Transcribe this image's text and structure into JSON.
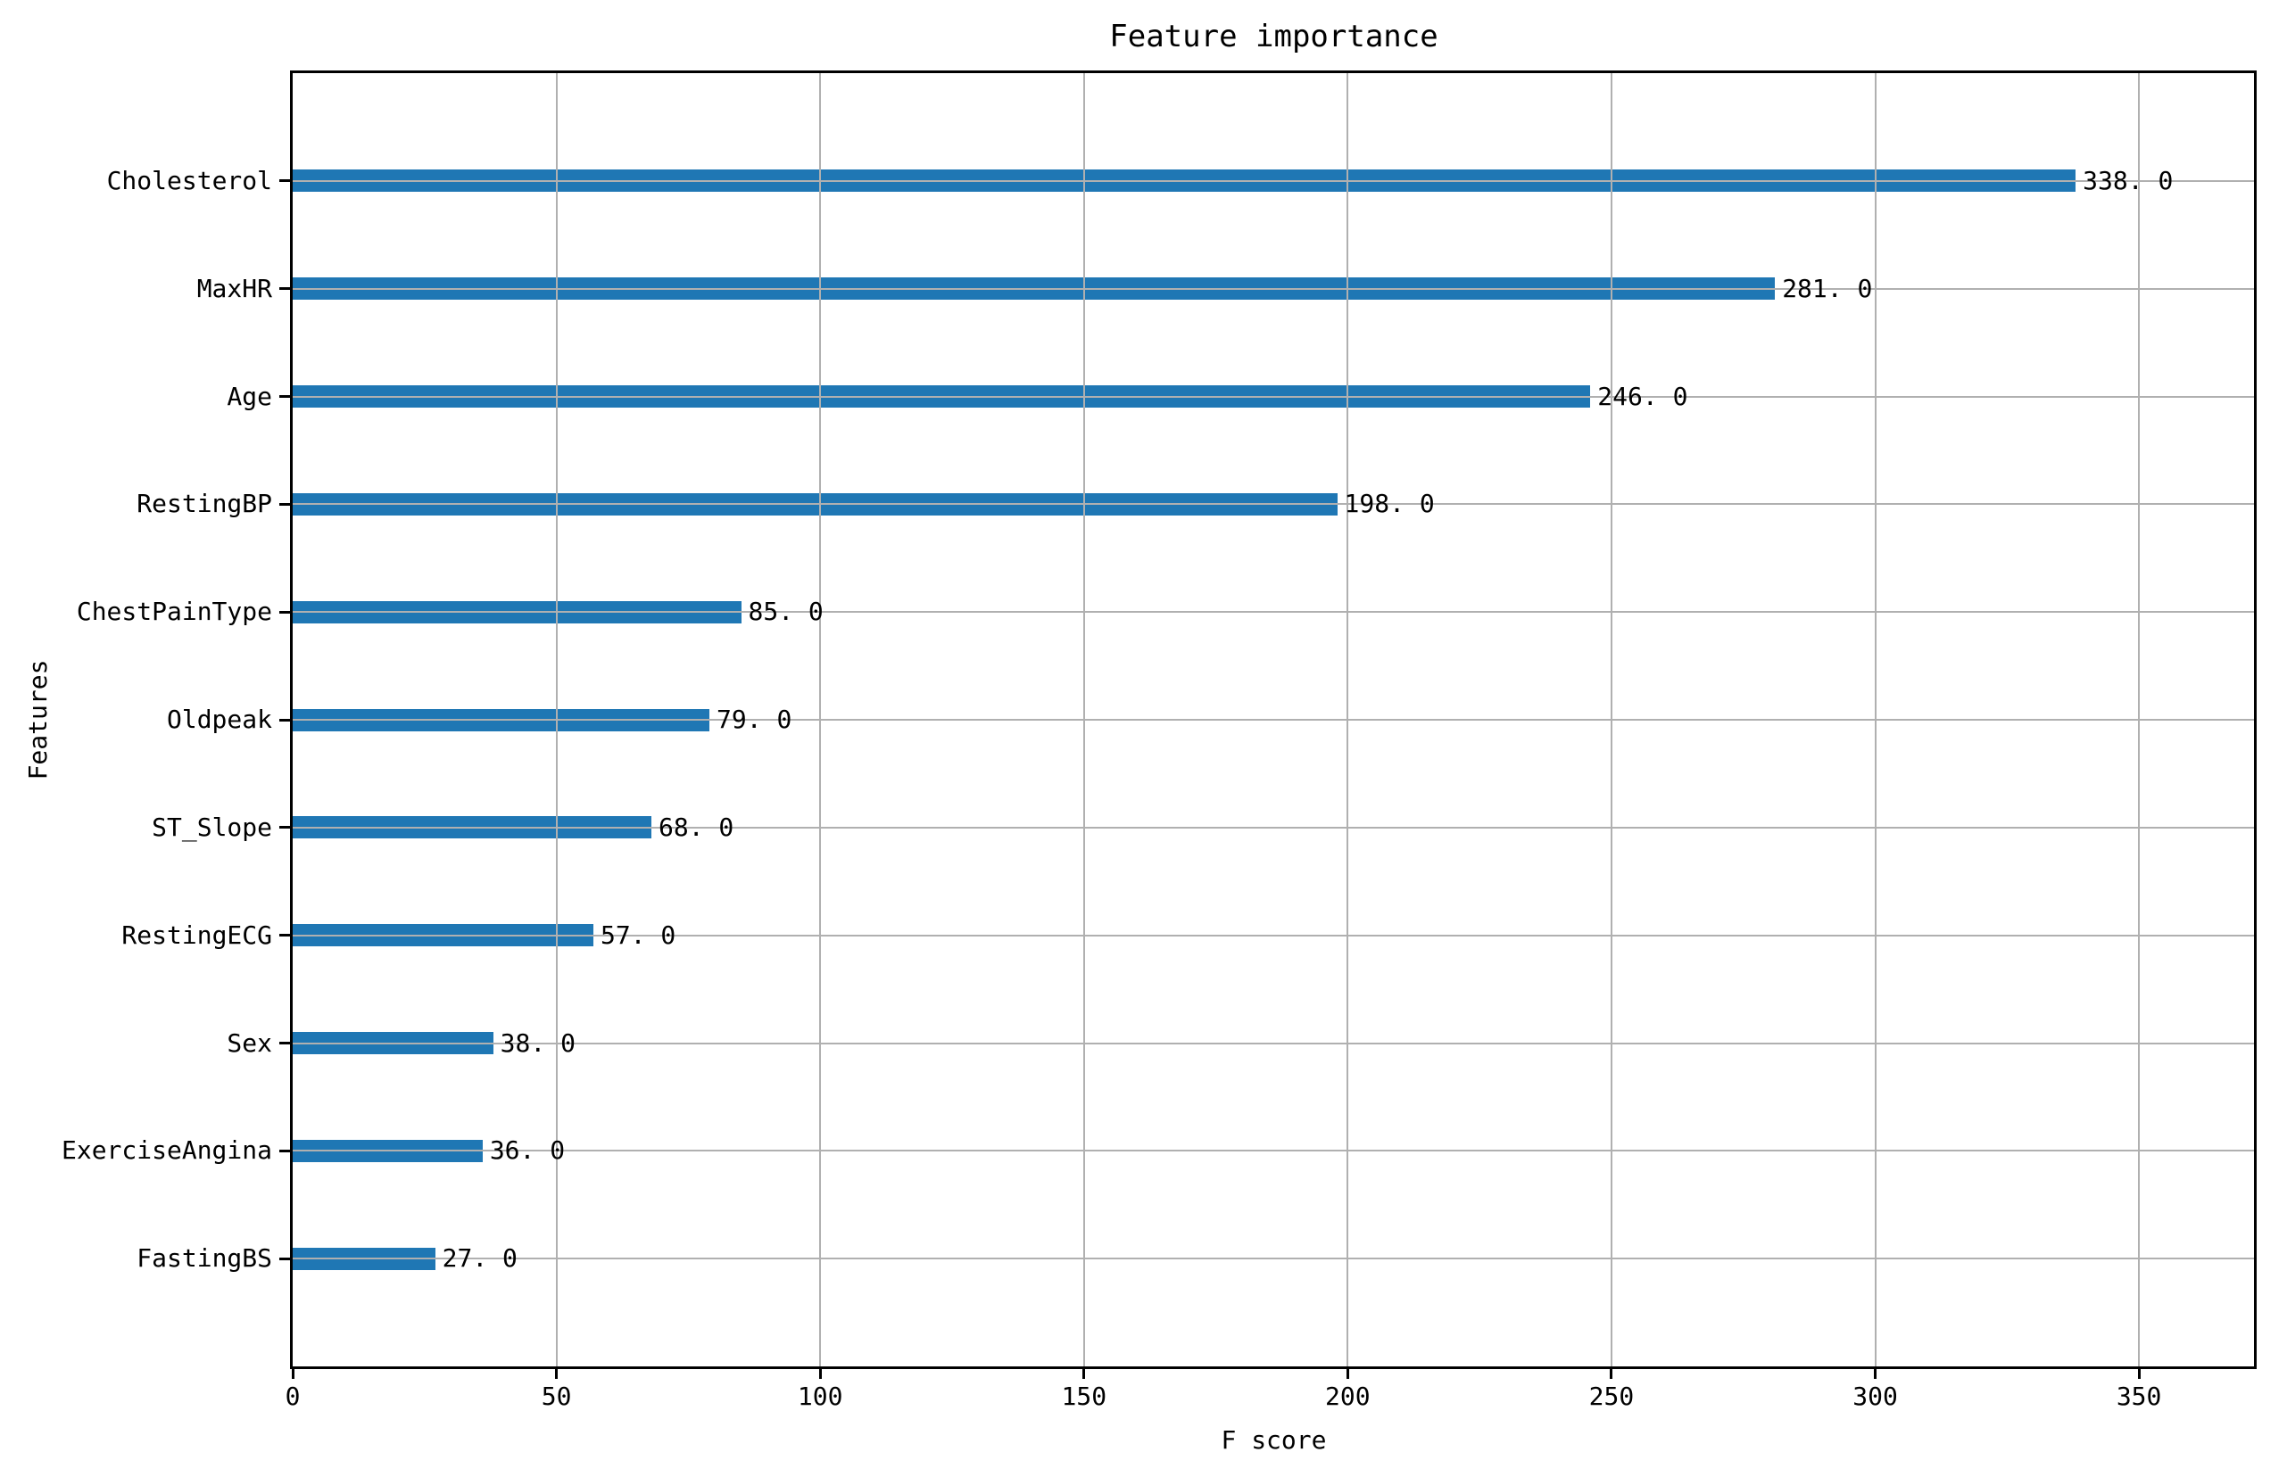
{
  "chart_data": {
    "type": "bar",
    "orientation": "horizontal",
    "title": "Feature importance",
    "xlabel": "F score",
    "ylabel": "Features",
    "categories": [
      "Cholesterol",
      "MaxHR",
      "Age",
      "RestingBP",
      "ChestPainType",
      "Oldpeak",
      "ST_Slope",
      "RestingECG",
      "Sex",
      "ExerciseAngina",
      "FastingBS"
    ],
    "values": [
      338,
      281,
      246,
      198,
      85,
      79,
      68,
      57,
      38,
      36,
      27
    ],
    "value_labels": [
      "338. 0",
      "281. 0",
      "246. 0",
      "198. 0",
      "85. 0",
      "79. 0",
      "68. 0",
      "57. 0",
      "38. 0",
      "36. 0",
      "27. 0"
    ],
    "x_ticks": [
      0,
      50,
      100,
      150,
      200,
      250,
      300,
      350
    ],
    "xlim": [
      0,
      371.8
    ],
    "ylim_slots": 12,
    "grid": true,
    "legend": "none",
    "bar_color": "#1f77b4",
    "grid_color": "#b0b0b0",
    "axis_color": "#000000",
    "text_color": "#000000"
  }
}
